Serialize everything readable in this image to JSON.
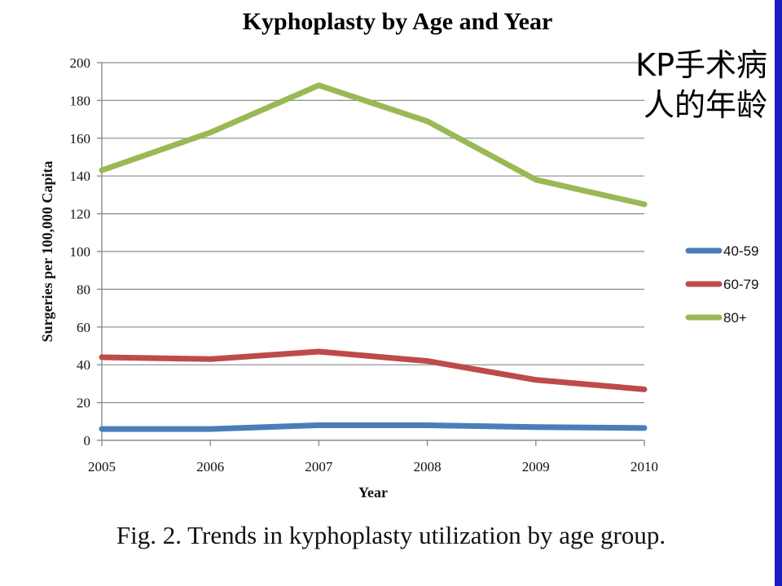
{
  "chart_data": {
    "type": "line",
    "title": "Kyphoplasty by Age and Year",
    "xlabel": "Year",
    "ylabel": "Surgeries per 100,000 Capita",
    "categories": [
      "2005",
      "2006",
      "2007",
      "2008",
      "2009",
      "2010"
    ],
    "ylim": [
      0,
      200
    ],
    "yticks": [
      "0",
      "20",
      "40",
      "60",
      "80",
      "100",
      "120",
      "140",
      "160",
      "180",
      "200"
    ],
    "grid": true,
    "legend_position": "right",
    "series": [
      {
        "name": "40-59",
        "color": "#4a7ebb",
        "values": [
          6,
          6,
          8,
          8,
          7,
          6.5
        ]
      },
      {
        "name": "60-79",
        "color": "#be4b48",
        "values": [
          44,
          43,
          47,
          42,
          32,
          27
        ]
      },
      {
        "name": "80+",
        "color": "#98b954",
        "values": [
          143,
          163,
          188,
          169,
          138,
          125
        ]
      }
    ]
  },
  "annotation": {
    "line1": "KP手术病",
    "line2": "人的年龄"
  },
  "caption": "Fig. 2.  Trends  in kyphoplasty utilization by age group.",
  "colors": {
    "right_edge_bar": "#1c1cc9"
  }
}
